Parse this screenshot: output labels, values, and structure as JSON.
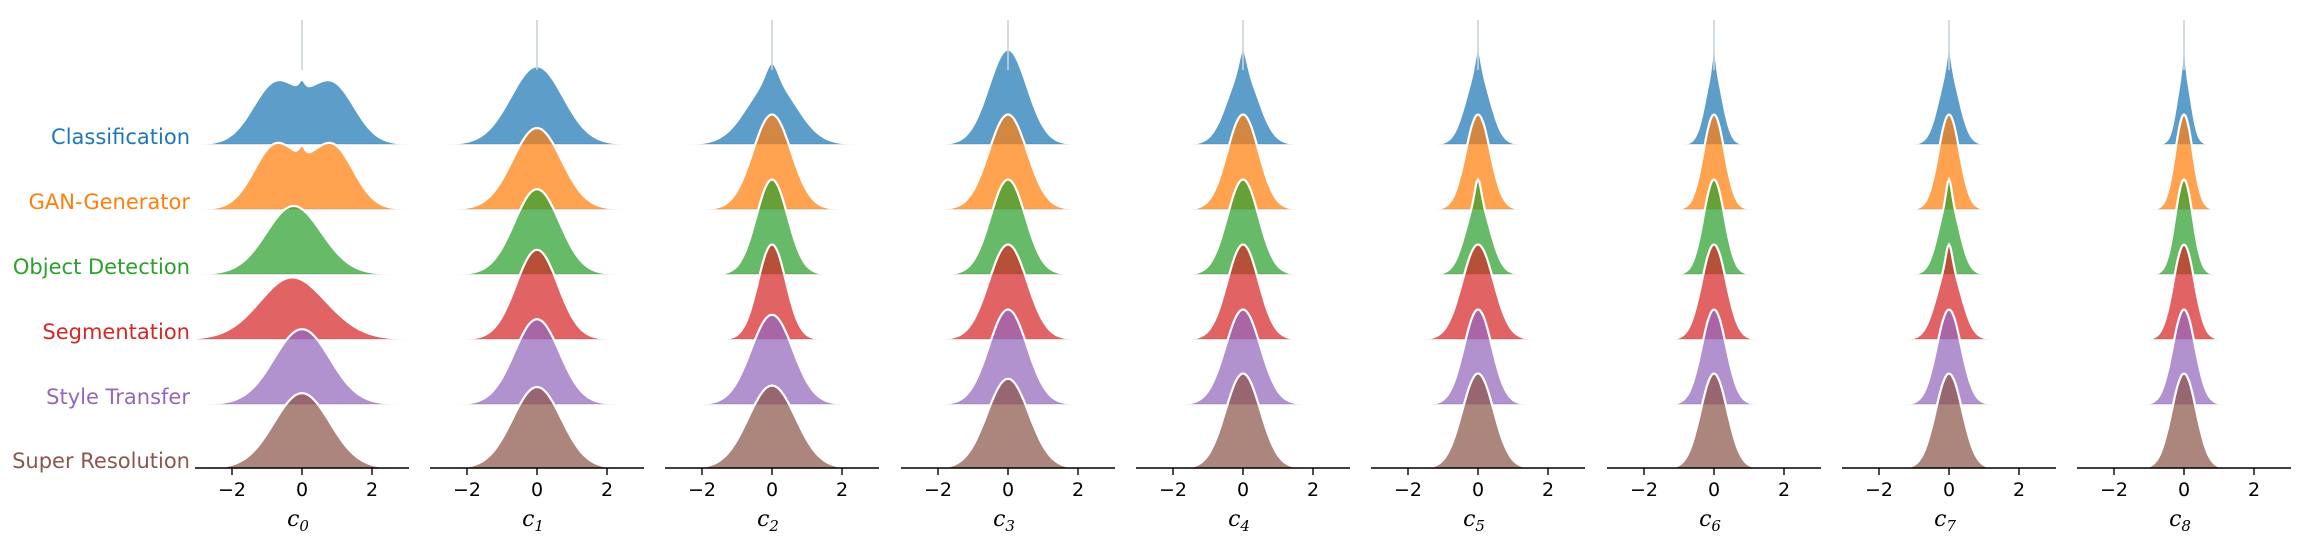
{
  "chart_data": {
    "type": "ridgeline",
    "xlim": [
      -3,
      3
    ],
    "xticks": [
      -2,
      0,
      2
    ],
    "xtick_labels": [
      "−2",
      "0",
      "2"
    ],
    "row_labels": [
      "Classification",
      "GAN-Generator",
      "Object Detection",
      "Segmentation",
      "Style Transfer",
      "Super Resolution"
    ],
    "colors": [
      "#1f77b4",
      "#ff7f0e",
      "#2ca02c",
      "#d62728",
      "#9467bd",
      "#8c564b"
    ],
    "panels": [
      {
        "label": "c",
        "sub": "0",
        "std": [
          1.05,
          1.0,
          0.95,
          1.15,
          0.8,
          0.8
        ],
        "shape": [
          "bimodal",
          "bimodal",
          "skewed",
          "skewed",
          "normal",
          "normal"
        ]
      },
      {
        "label": "c",
        "sub": "1",
        "std": [
          0.75,
          0.7,
          0.65,
          0.6,
          0.65,
          0.7
        ],
        "shape": [
          "normal",
          "normal",
          "normal",
          "normal",
          "normal",
          "normal"
        ]
      },
      {
        "label": "c",
        "sub": "2",
        "std": [
          0.7,
          0.55,
          0.45,
          0.4,
          0.6,
          0.68
        ],
        "shape": [
          "peaked",
          "normal",
          "normal",
          "normal",
          "normal",
          "normal"
        ]
      },
      {
        "label": "c",
        "sub": "3",
        "std": [
          0.55,
          0.55,
          0.5,
          0.55,
          0.55,
          0.6
        ],
        "shape": [
          "normal",
          "normal",
          "normal",
          "normal",
          "normal",
          "normal"
        ]
      },
      {
        "label": "c",
        "sub": "4",
        "std": [
          0.45,
          0.45,
          0.45,
          0.45,
          0.5,
          0.5
        ],
        "shape": [
          "peaked",
          "normal",
          "normal",
          "normal",
          "normal",
          "normal"
        ]
      },
      {
        "label": "c",
        "sub": "5",
        "std": [
          0.35,
          0.35,
          0.35,
          0.45,
          0.4,
          0.45
        ],
        "shape": [
          "peaked",
          "normal",
          "peaked",
          "normal",
          "normal",
          "normal"
        ]
      },
      {
        "label": "c",
        "sub": "6",
        "std": [
          0.25,
          0.3,
          0.3,
          0.35,
          0.35,
          0.38
        ],
        "shape": [
          "peaked",
          "normal",
          "normal",
          "normal",
          "normal",
          "normal"
        ]
      },
      {
        "label": "c",
        "sub": "7",
        "std": [
          0.3,
          0.3,
          0.3,
          0.35,
          0.35,
          0.38
        ],
        "shape": [
          "peaked",
          "normal",
          "peaked",
          "peaked",
          "normal",
          "normal"
        ]
      },
      {
        "label": "c",
        "sub": "8",
        "std": [
          0.2,
          0.25,
          0.25,
          0.3,
          0.32,
          0.35
        ],
        "shape": [
          "peaked",
          "normal",
          "normal",
          "normal",
          "normal",
          "normal"
        ]
      }
    ]
  }
}
